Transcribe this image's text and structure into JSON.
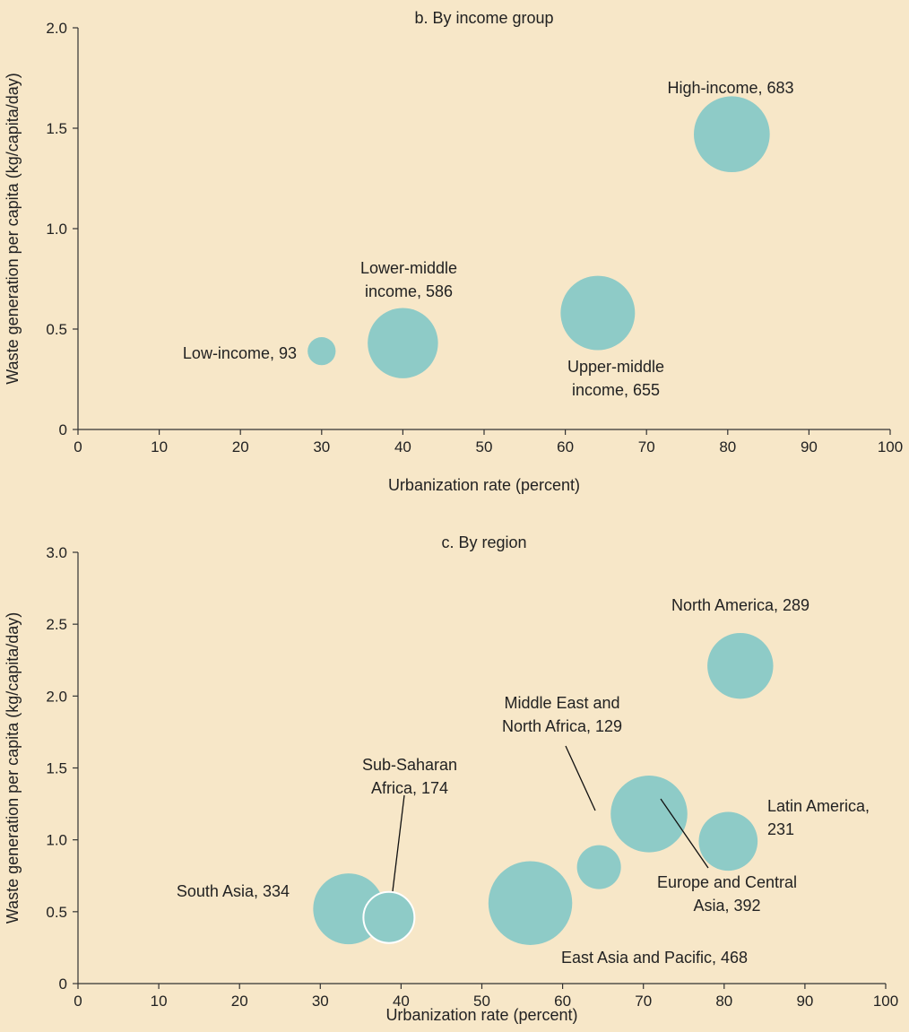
{
  "chart_data": [
    {
      "type": "scatter",
      "title": "b. By income group",
      "xlabel": "Urbanization rate (percent)",
      "ylabel": "Waste generation per capita (kg/capita/day)",
      "xlim": [
        0,
        100
      ],
      "ylim": [
        0,
        2.0
      ],
      "xticks": [
        "0",
        "10",
        "20",
        "30",
        "40",
        "50",
        "60",
        "70",
        "80",
        "90",
        "100"
      ],
      "yticks": [
        "0",
        "0.5",
        "1.0",
        "1.5",
        "2.0"
      ],
      "grid": false,
      "bubble_color": "#8ecbc7",
      "points": [
        {
          "label_lines": [
            "Low-income, 93"
          ],
          "x": 30,
          "y": 0.39,
          "size": 93
        },
        {
          "label_lines": [
            "Lower-middle",
            "income, 586"
          ],
          "x": 40,
          "y": 0.43,
          "size": 586
        },
        {
          "label_lines": [
            "Upper-middle",
            "income, 655"
          ],
          "x": 64,
          "y": 0.58,
          "size": 655
        },
        {
          "label_lines": [
            "High-income, 683"
          ],
          "x": 80.5,
          "y": 1.47,
          "size": 683
        }
      ]
    },
    {
      "type": "scatter",
      "title": "c. By region",
      "xlabel": "Urbanization rate (percent)",
      "ylabel": "Waste generation per capita (kg/capita/day)",
      "xlim": [
        0,
        100
      ],
      "ylim": [
        0,
        3.0
      ],
      "xticks": [
        "0",
        "10",
        "20",
        "30",
        "40",
        "50",
        "60",
        "70",
        "80",
        "90",
        "100"
      ],
      "yticks": [
        "0",
        "0.5",
        "1.0",
        "1.5",
        "2.0",
        "2.5",
        "3.0"
      ],
      "grid": false,
      "bubble_color": "#8ecbc7",
      "points": [
        {
          "label_lines": [
            "South Asia, 334"
          ],
          "x": 33.5,
          "y": 0.52,
          "size": 334
        },
        {
          "label_lines": [
            "Sub-Saharan",
            "Africa, 174"
          ],
          "x": 38.5,
          "y": 0.46,
          "size": 174
        },
        {
          "label_lines": [
            "East Asia and Pacific, 468"
          ],
          "x": 56,
          "y": 0.56,
          "size": 468
        },
        {
          "label_lines": [
            "Middle East and",
            "North Africa, 129"
          ],
          "x": 64.5,
          "y": 0.81,
          "size": 129
        },
        {
          "label_lines": [
            "Europe and Central",
            "Asia, 392"
          ],
          "x": 70.7,
          "y": 1.18,
          "size": 392
        },
        {
          "label_lines": [
            "Latin America,",
            "231"
          ],
          "x": 80.5,
          "y": 0.99,
          "size": 231
        },
        {
          "label_lines": [
            "North America, 289"
          ],
          "x": 82,
          "y": 2.21,
          "size": 289
        }
      ]
    }
  ]
}
